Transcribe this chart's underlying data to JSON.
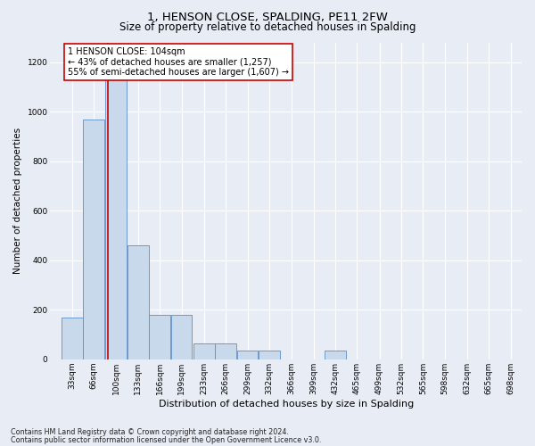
{
  "title": "1, HENSON CLOSE, SPALDING, PE11 2FW",
  "subtitle": "Size of property relative to detached houses in Spalding",
  "xlabel": "Distribution of detached houses by size in Spalding",
  "ylabel": "Number of detached properties",
  "footnote1": "Contains HM Land Registry data © Crown copyright and database right 2024.",
  "footnote2": "Contains public sector information licensed under the Open Government Licence v3.0.",
  "bar_color": "#c9d9ec",
  "bar_edge_color": "#5b8fc9",
  "vline_color": "#cc0000",
  "annotation_box_color": "#cc0000",
  "bins_left": [
    33,
    66,
    100,
    133,
    166,
    199,
    233,
    266,
    299,
    332,
    366,
    399,
    432,
    465,
    499,
    532,
    565,
    598,
    632,
    665
  ],
  "bin_labels": [
    "33sqm",
    "66sqm",
    "100sqm",
    "133sqm",
    "166sqm",
    "199sqm",
    "233sqm",
    "266sqm",
    "299sqm",
    "332sqm",
    "366sqm",
    "399sqm",
    "432sqm",
    "465sqm",
    "499sqm",
    "532sqm",
    "565sqm",
    "598sqm",
    "632sqm",
    "665sqm",
    "698sqm"
  ],
  "values": [
    170,
    970,
    1200,
    460,
    180,
    180,
    65,
    65,
    35,
    35,
    0,
    0,
    35,
    0,
    0,
    0,
    0,
    0,
    0,
    0
  ],
  "property_size": 104,
  "annotation_line1": "1 HENSON CLOSE: 104sqm",
  "annotation_line2": "← 43% of detached houses are smaller (1,257)",
  "annotation_line3": "55% of semi-detached houses are larger (1,607) →",
  "ylim": [
    0,
    1280
  ],
  "yticks": [
    0,
    200,
    400,
    600,
    800,
    1000,
    1200
  ],
  "bin_width": 33,
  "background_color": "#e8edf5",
  "grid_color": "#ffffff",
  "title_fontsize": 9.5,
  "subtitle_fontsize": 8.5,
  "xlabel_fontsize": 8,
  "ylabel_fontsize": 7.5,
  "tick_fontsize": 6.5,
  "annotation_fontsize": 7,
  "footnote_fontsize": 5.8
}
